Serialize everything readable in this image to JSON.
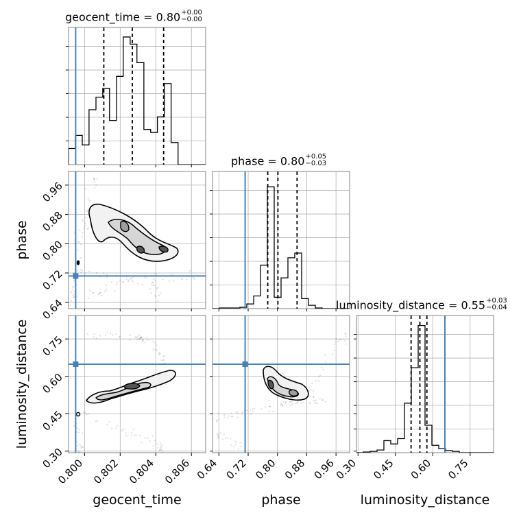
{
  "chart_data": {
    "type": "corner",
    "parameters": [
      "geocent_time",
      "phase",
      "luminosity_distance"
    ],
    "axis_labels": {
      "x": [
        "geocent_time",
        "phase",
        "luminosity_distance"
      ],
      "y": [
        "phase",
        "luminosity_distance"
      ]
    },
    "titles": [
      {
        "name": "geocent_time",
        "median": "0.80",
        "plus": "+0.00",
        "minus": "−0.00"
      },
      {
        "name": "phase",
        "median": "0.80",
        "plus": "+0.05",
        "minus": "−0.03"
      },
      {
        "name": "luminosity_distance",
        "median": "0.55",
        "plus": "+0.03",
        "minus": "−0.04"
      }
    ],
    "ranges": {
      "geocent_time": [
        0.7991,
        0.8068
      ],
      "phase": [
        0.6226,
        0.9972
      ],
      "luminosity_distance": [
        0.2938,
        0.8441
      ]
    },
    "ticks": {
      "geocent_time": [
        0.8,
        0.802,
        0.804,
        0.806
      ],
      "phase": [
        0.64,
        0.72,
        0.8,
        0.88,
        0.96
      ],
      "luminosity_distance": [
        0.3,
        0.45,
        0.6,
        0.75
      ]
    },
    "tick_labels": {
      "geocent_time": [
        "0.800",
        "0.802",
        "0.804",
        "0.806"
      ],
      "phase": [
        "0.64",
        "0.72",
        "0.80",
        "0.88",
        "0.96"
      ],
      "luminosity_distance": [
        "0.30",
        "0.45",
        "0.60",
        "0.75"
      ]
    },
    "injection": {
      "geocent_time": 0.7995,
      "phase": 0.7117,
      "luminosity_distance": 0.6487
    },
    "histograms": {
      "geocent_time": {
        "edges": [
          0.7991,
          0.79948,
          0.79987,
          0.80025,
          0.80064,
          0.80102,
          0.8014,
          0.80179,
          0.80217,
          0.80256,
          0.80294,
          0.80333,
          0.80371,
          0.80409,
          0.80448,
          0.80486,
          0.80525,
          0.80563,
          0.80602,
          0.8064,
          0.80679
        ],
        "counts": [
          27,
          49,
          33,
          92,
          113,
          128,
          74,
          148,
          214,
          202,
          171,
          59,
          54,
          80,
          136,
          37,
          0,
          0,
          0,
          0
        ],
        "quantiles": [
          0.80108,
          0.80268,
          0.80444
        ],
        "ymax": 230
      },
      "phase": {
        "edges": [
          0.6226,
          0.64133,
          0.66006,
          0.67879,
          0.69752,
          0.71625,
          0.73498,
          0.75371,
          0.77244,
          0.79117,
          0.8099,
          0.82863,
          0.84736,
          0.86609,
          0.88482,
          0.90355,
          0.92228,
          0.94101,
          0.95974,
          0.97847,
          0.9972
        ],
        "counts": [
          0,
          1,
          1,
          1,
          2,
          7,
          19,
          65,
          182,
          17,
          46,
          76,
          83,
          15,
          5,
          1,
          0,
          0,
          0,
          0
        ],
        "quantiles": [
          0.7735,
          0.8013,
          0.8536
        ],
        "ymax": 205
      },
      "luminosity_distance": {
        "edges": [
          0.2938,
          0.32132,
          0.34883,
          0.37635,
          0.40386,
          0.43138,
          0.45889,
          0.48641,
          0.51392,
          0.54144,
          0.56895,
          0.59647,
          0.62398,
          0.6515,
          0.67901,
          0.70653,
          0.73404,
          0.76156,
          0.78907,
          0.81659,
          0.8441
        ],
        "counts": [
          0,
          1,
          2,
          4,
          18,
          13,
          21,
          74,
          127,
          190,
          41,
          11,
          6,
          3,
          2,
          0,
          0,
          0,
          0,
          0
        ],
        "quantiles": [
          0.513,
          0.5483,
          0.5765
        ],
        "ymax": 205
      }
    }
  }
}
